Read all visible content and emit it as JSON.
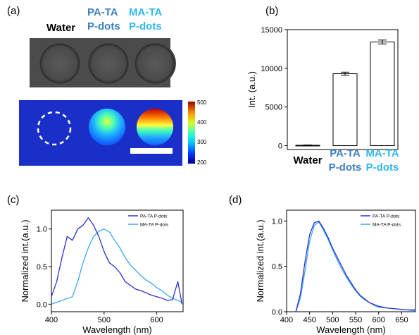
{
  "panel_labels": [
    "(a)",
    "(b)",
    "(c)",
    "(d)"
  ],
  "colors": {
    "pa": "#2a2fd0",
    "ma": "#35a8f0",
    "pa_text": "#3e7fc1",
    "ma_text": "#33b6ee",
    "water_text": "#000000"
  },
  "panel_a": {
    "sample_labels": [
      {
        "lines": [
          "Water"
        ],
        "color": "#000000"
      },
      {
        "lines": [
          "PA-TA",
          "P-dots"
        ],
        "color": "#3e7fc1"
      },
      {
        "lines": [
          "MA-TA",
          "P-dots"
        ],
        "color": "#33b6ee"
      }
    ],
    "colorbar_ticks": [
      "500",
      "400",
      "300",
      "200"
    ]
  },
  "chart_data": [
    {
      "type": "bar",
      "panel": "(b)",
      "categories": [
        {
          "lines": [
            "Water"
          ],
          "color": "#000000"
        },
        {
          "lines": [
            "PA-TA",
            "P-dots"
          ],
          "color": "#3e7fc1"
        },
        {
          "lines": [
            "MA-TA",
            "P-dots"
          ],
          "color": "#33b6ee"
        }
      ],
      "values": [
        50,
        9300,
        13400
      ],
      "errors": [
        40,
        200,
        250
      ],
      "ylabel": "Int. (a.u.)",
      "ylim": [
        -500,
        15000
      ],
      "yticks": [
        0,
        5000,
        10000,
        15000
      ]
    },
    {
      "type": "line",
      "panel": "(c)",
      "xlabel": "Wavelength (nm)",
      "ylabel": "Normalized int.(a.u.)",
      "xlim": [
        400,
        650
      ],
      "ylim": [
        -0.1,
        1.25
      ],
      "xticks": [
        400,
        500,
        600
      ],
      "yticks": [
        0.0,
        0.5,
        1.0
      ],
      "legend_position": "top-right",
      "series": [
        {
          "name": "PA-TA P-dots",
          "color": "#2a2fd0",
          "x": [
            400,
            410,
            420,
            430,
            440,
            450,
            460,
            470,
            480,
            490,
            500,
            510,
            520,
            530,
            540,
            550,
            560,
            570,
            580,
            590,
            600,
            610,
            620,
            630,
            640,
            648
          ],
          "y": [
            0.1,
            0.3,
            0.62,
            0.9,
            0.85,
            1.0,
            1.05,
            1.15,
            1.05,
            0.9,
            0.7,
            0.55,
            0.5,
            0.42,
            0.3,
            0.25,
            0.2,
            0.18,
            0.15,
            0.12,
            0.1,
            0.08,
            0.05,
            0.06,
            0.3,
            0.0
          ]
        },
        {
          "name": "MA-TA P-dots",
          "color": "#35a8f0",
          "x": [
            400,
            420,
            440,
            450,
            460,
            470,
            480,
            490,
            500,
            510,
            520,
            530,
            540,
            550,
            560,
            570,
            580,
            590,
            600,
            610,
            620,
            630,
            640,
            650
          ],
          "y": [
            0.0,
            0.05,
            0.1,
            0.3,
            0.55,
            0.75,
            0.9,
            0.97,
            1.0,
            0.96,
            0.85,
            0.75,
            0.62,
            0.52,
            0.45,
            0.38,
            0.32,
            0.28,
            0.22,
            0.18,
            0.12,
            0.08,
            0.05,
            0.02
          ]
        }
      ]
    },
    {
      "type": "line",
      "panel": "(d)",
      "xlabel": "Wavelength (nm)",
      "ylabel": "Normalized int.(a.u.)",
      "xlim": [
        400,
        680
      ],
      "ylim": [
        0.0,
        1.12
      ],
      "xticks": [
        400,
        450,
        500,
        550,
        600,
        650
      ],
      "yticks": [
        0.0,
        0.5,
        1.0
      ],
      "legend_position": "top-right",
      "series": [
        {
          "name": "PA-TA P-dots",
          "color": "#2a2fd0",
          "x": [
            420,
            430,
            440,
            450,
            460,
            470,
            480,
            490,
            500,
            510,
            520,
            530,
            540,
            550,
            560,
            570,
            580,
            590,
            600,
            620,
            640,
            660,
            680
          ],
          "y": [
            0.0,
            0.2,
            0.55,
            0.85,
            0.98,
            1.0,
            0.92,
            0.82,
            0.7,
            0.6,
            0.5,
            0.4,
            0.32,
            0.24,
            0.18,
            0.14,
            0.1,
            0.08,
            0.06,
            0.04,
            0.03,
            0.02,
            0.02
          ]
        },
        {
          "name": "MA-TA P-dots",
          "color": "#35a8f0",
          "x": [
            420,
            430,
            440,
            450,
            460,
            470,
            480,
            490,
            500,
            510,
            520,
            530,
            540,
            550,
            560,
            570,
            580,
            590,
            600,
            620,
            640,
            660,
            680
          ],
          "y": [
            0.0,
            0.15,
            0.45,
            0.78,
            0.95,
            0.99,
            0.9,
            0.8,
            0.68,
            0.57,
            0.47,
            0.38,
            0.3,
            0.23,
            0.17,
            0.13,
            0.1,
            0.07,
            0.05,
            0.04,
            0.03,
            0.02,
            0.01
          ]
        }
      ]
    }
  ]
}
